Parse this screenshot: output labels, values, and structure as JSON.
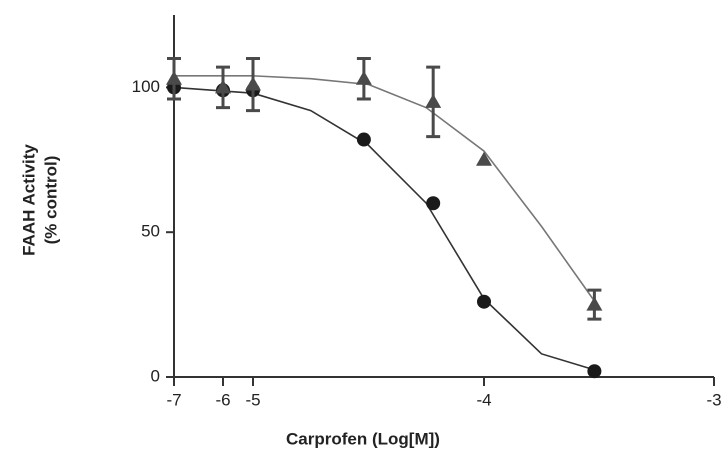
{
  "chart_data": {
    "type": "scatter",
    "x_label": "Carprofen (Log[M])",
    "y_label": [
      "FAAH Activity",
      "(% control)"
    ],
    "xlim": [
      -7,
      -3
    ],
    "xticks": [
      -7,
      -6,
      -5,
      -4,
      -3
    ],
    "ylim": [
      0,
      125
    ],
    "yticks": [
      0,
      50,
      100
    ],
    "series": [
      {
        "marker": "circle",
        "color": "#1a1a1a",
        "x": [
          -7,
          -6,
          -5,
          -4.52,
          -4.22,
          -4,
          -3.52
        ],
        "values": [
          100,
          99,
          99,
          82,
          60,
          26,
          2
        ]
      },
      {
        "marker": "triangle",
        "color": "#4a4a4a",
        "x": [
          -7,
          -6,
          -5,
          -4.52,
          -4.22,
          -4,
          -3.52
        ],
        "values": [
          103,
          100,
          101,
          103,
          95,
          75,
          25
        ],
        "errors": [
          7,
          7,
          9,
          7,
          12,
          0,
          5
        ]
      }
    ],
    "fits": [
      {
        "color": "#333333",
        "x": [
          -7,
          -5,
          -4.75,
          -4.5,
          -4.25,
          -4,
          -3.75,
          -3.5
        ],
        "values": [
          100,
          98,
          92,
          80,
          60,
          27,
          8,
          2
        ]
      },
      {
        "color": "#777777",
        "x": [
          -7,
          -5,
          -4.75,
          -4.5,
          -4.25,
          -4,
          -3.75,
          -3.5
        ],
        "values": [
          104,
          104,
          103,
          101,
          93,
          78,
          52,
          24
        ]
      }
    ]
  }
}
